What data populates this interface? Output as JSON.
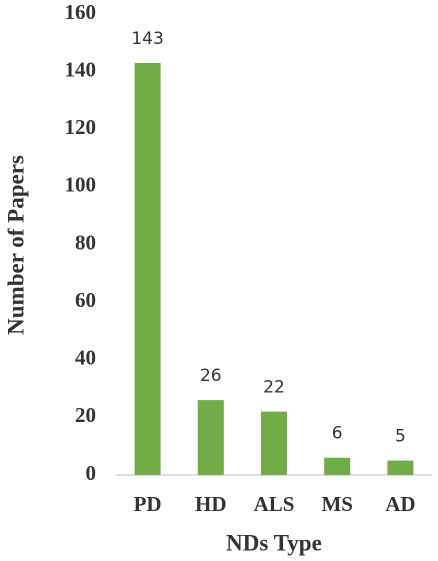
{
  "chart_data": {
    "type": "bar",
    "x_label": "NDs Type",
    "y_label": "Number of Papers",
    "categories": [
      "PD",
      "HD",
      "ALS",
      "MS",
      "AD"
    ],
    "values": [
      143,
      26,
      22,
      6,
      5
    ],
    "color": "#70ad47",
    "ylim": [
      0,
      160
    ],
    "yticks": [
      0,
      20,
      40,
      60,
      80,
      100,
      120,
      140,
      160
    ],
    "grid": false
  }
}
